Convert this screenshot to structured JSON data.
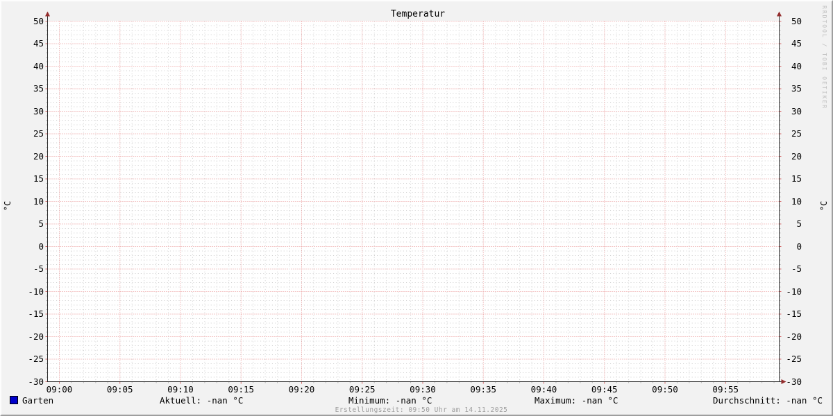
{
  "header": {
    "title": "Temperatur"
  },
  "watermark": "RRDTOOL / TOBI OETIKER",
  "axes": {
    "y_unit": "°C",
    "y_ticks": [
      "50",
      "45",
      "40",
      "35",
      "30",
      "25",
      "20",
      "15",
      "10",
      "5",
      "0",
      "-5",
      "-10",
      "-15",
      "-20",
      "-25",
      "-30"
    ],
    "x_ticks": [
      "09:00",
      "09:05",
      "09:10",
      "09:15",
      "09:20",
      "09:25",
      "09:30",
      "09:35",
      "09:40",
      "09:45",
      "09:50",
      "09:55"
    ]
  },
  "legend": {
    "series_label": "Garten",
    "series_color": "#0000cc",
    "stats": [
      {
        "label": "Aktuell",
        "value": "-nan °C",
        "text": "Aktuell: -nan °C"
      },
      {
        "label": "Minimum",
        "value": "-nan °C",
        "text": "Minimum: -nan °C"
      },
      {
        "label": "Maximum",
        "value": "-nan °C",
        "text": "Maximum: -nan °C"
      },
      {
        "label": "Durchschnitt",
        "value": "-nan °C",
        "text": "Durchschnitt: -nan °C"
      }
    ]
  },
  "footer": {
    "text": "Erstellungszeit: 09:50 Uhr am 14.11.2025"
  },
  "colors": {
    "background": "#f2f2f2",
    "canvas": "#ffffff",
    "shade_light": "#fdfdfd",
    "shade_dark": "#9e9e9e",
    "axis": "#2e2e2e",
    "arrow": "#942d2d",
    "major_grid": "#e89090",
    "minor_grid": "#cfcfcf",
    "major_tick": "#d46a6a",
    "minor_tick": "#b5b5b5",
    "series_blue": "#0000cc",
    "footer_gray": "#9d9d9d",
    "watermark_gray": "#bdbdbd"
  },
  "chart_data": {
    "type": "line",
    "title": "Temperatur",
    "ylabel": "°C",
    "ylabel_right": "°C",
    "ylim": [
      -30,
      50
    ],
    "y_major_step": 5,
    "y_minor_step": 1,
    "x_ticks": [
      "09:00",
      "09:05",
      "09:10",
      "09:15",
      "09:20",
      "09:25",
      "09:30",
      "09:35",
      "09:40",
      "09:45",
      "09:50",
      "09:55"
    ],
    "x_minor_step_minutes": 1,
    "x_major_step_minutes": 5,
    "grid": true,
    "legend_position": "bottom",
    "series": [
      {
        "name": "Garten",
        "color": "#0000cc",
        "values": [],
        "note": "no data drawn - all values -nan"
      }
    ],
    "stats": {
      "aktuell": "-nan °C",
      "minimum": "-nan °C",
      "maximum": "-nan °C",
      "durchschnitt": "-nan °C"
    }
  }
}
